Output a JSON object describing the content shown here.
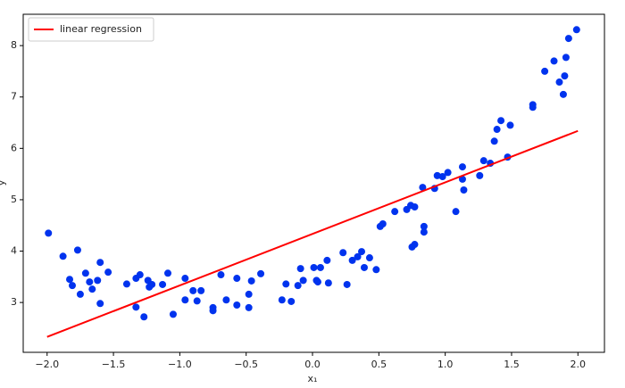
{
  "chart_data": {
    "type": "scatter",
    "xlabel": "x₁",
    "ylabel": "y",
    "xlim": [
      -2.18,
      2.2
    ],
    "ylim": [
      2.03,
      8.61
    ],
    "xticks": [
      {
        "value": -2.0,
        "label": "−2.0"
      },
      {
        "value": -1.5,
        "label": "−1.5"
      },
      {
        "value": -1.0,
        "label": "−1.0"
      },
      {
        "value": -0.5,
        "label": "−0.5"
      },
      {
        "value": 0.0,
        "label": "0.0"
      },
      {
        "value": 0.5,
        "label": "0.5"
      },
      {
        "value": 1.0,
        "label": "1.0"
      },
      {
        "value": 1.5,
        "label": "1.5"
      },
      {
        "value": 2.0,
        "label": "2.0"
      }
    ],
    "yticks": [
      3,
      4,
      5,
      6,
      7,
      8
    ],
    "legend": "upper left",
    "series": [
      {
        "name": "linear regression",
        "type": "line",
        "color": "#ff0000",
        "x": [
          -2.0,
          2.0
        ],
        "values": [
          2.33,
          6.34
        ]
      },
      {
        "type": "scatter",
        "color": "#0033ee",
        "x": [
          -1.99,
          -1.88,
          -1.83,
          -1.81,
          -1.77,
          -1.75,
          -1.71,
          -1.68,
          -1.66,
          -1.62,
          -1.6,
          -1.6,
          -1.54,
          -1.4,
          -1.33,
          -1.33,
          -1.3,
          -1.27,
          -1.24,
          -1.23,
          -1.21,
          -1.13,
          -1.09,
          -1.05,
          -0.96,
          -0.96,
          -0.9,
          -0.87,
          -0.84,
          -0.75,
          -0.75,
          -0.69,
          -0.65,
          -0.57,
          -0.57,
          -0.48,
          -0.48,
          -0.46,
          -0.39,
          -0.23,
          -0.2,
          -0.16,
          -0.11,
          -0.09,
          -0.07,
          0.01,
          0.03,
          0.04,
          0.06,
          0.11,
          0.12,
          0.23,
          0.26,
          0.3,
          0.34,
          0.37,
          0.39,
          0.43,
          0.48,
          0.51,
          0.53,
          0.62,
          0.71,
          0.74,
          0.75,
          0.77,
          0.77,
          0.83,
          0.84,
          0.84,
          0.92,
          0.94,
          0.98,
          1.02,
          1.08,
          1.13,
          1.13,
          1.14,
          1.26,
          1.29,
          1.34,
          1.37,
          1.39,
          1.42,
          1.47,
          1.49,
          1.66,
          1.66,
          1.75,
          1.82,
          1.86,
          1.89,
          1.9,
          1.91,
          1.93,
          1.99
        ],
        "values": [
          4.35,
          3.9,
          3.45,
          3.33,
          4.02,
          3.16,
          3.57,
          3.4,
          3.26,
          3.43,
          3.78,
          2.98,
          3.59,
          3.36,
          3.47,
          2.91,
          3.54,
          2.72,
          3.43,
          3.3,
          3.35,
          3.35,
          3.57,
          2.77,
          3.47,
          3.05,
          3.23,
          3.03,
          3.23,
          2.9,
          2.84,
          3.54,
          3.05,
          3.47,
          2.95,
          3.16,
          2.9,
          3.42,
          3.56,
          3.05,
          3.36,
          3.02,
          3.33,
          3.66,
          3.43,
          3.68,
          3.43,
          3.4,
          3.68,
          3.82,
          3.38,
          3.97,
          3.35,
          3.82,
          3.89,
          3.99,
          3.68,
          3.87,
          3.64,
          4.48,
          4.53,
          4.77,
          4.81,
          4.89,
          4.08,
          4.13,
          4.86,
          5.24,
          4.48,
          4.37,
          5.22,
          5.47,
          5.45,
          5.53,
          4.77,
          5.4,
          5.64,
          5.19,
          5.47,
          5.76,
          5.71,
          6.14,
          6.37,
          6.54,
          5.83,
          6.45,
          6.85,
          6.8,
          7.5,
          7.7,
          7.29,
          7.05,
          7.41,
          7.77,
          8.14,
          8.31
        ]
      }
    ]
  }
}
